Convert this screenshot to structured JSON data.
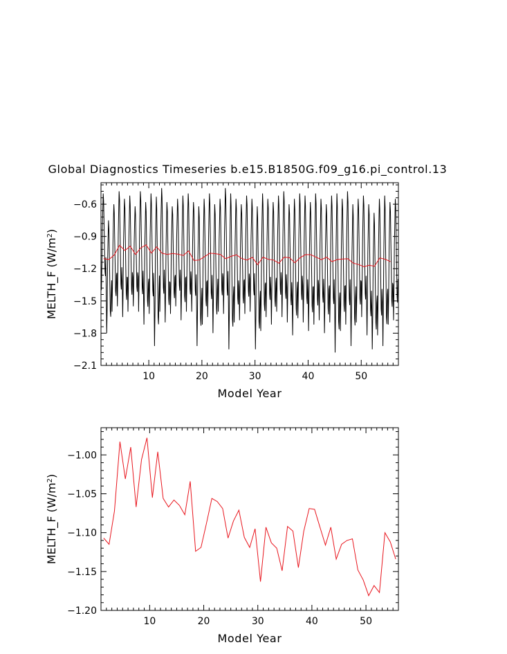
{
  "page_title": "Global Diagnostics Timeseries b.e15.B1850G.f09_g16.pi_control.13",
  "chart_data": [
    {
      "type": "line",
      "xlabel": "Model Year",
      "ylabel_main": "MELTH_F (W/m",
      "ylabel_sup": "2",
      "ylabel_end": ")",
      "xlim": [
        1,
        57
      ],
      "ylim": [
        -2.1,
        -0.4
      ],
      "xticks": [
        10,
        20,
        30,
        40,
        50
      ],
      "yticks": [
        -2.1,
        -1.8,
        -1.5,
        -1.2,
        -0.9,
        -0.6
      ],
      "ytick_labels": [
        "−2.1",
        "−1.8",
        "−1.5",
        "−1.2",
        "−0.9",
        "−0.6"
      ],
      "series": [
        {
          "kind": "monthly",
          "color": "#000000",
          "monthly_pattern": [
            -1.35,
            -1.65,
            -1.4,
            -1.0,
            -0.8,
            -0.62,
            -0.7,
            -0.95,
            -1.2,
            -1.45,
            -1.5,
            -1.3
          ],
          "annual_peaks": [
            -0.5,
            -0.75,
            -0.6,
            -0.48,
            -0.55,
            -0.52,
            -0.62,
            -0.48,
            -0.58,
            -0.5,
            -0.53,
            -0.45,
            -0.58,
            -0.62,
            -0.55,
            -0.52,
            -0.5,
            -0.58,
            -0.62,
            -0.55,
            -0.5,
            -0.6,
            -0.55,
            -0.45,
            -0.5,
            -0.55,
            -0.6,
            -0.52,
            -0.55,
            -0.62,
            -0.5,
            -0.55,
            -0.58,
            -0.52,
            -0.48,
            -0.6,
            -0.55,
            -0.5,
            -0.52,
            -0.58,
            -0.5,
            -0.55,
            -0.6,
            -0.52,
            -0.5,
            -0.55,
            -0.48,
            -0.6,
            -0.55,
            -0.52,
            -0.6,
            -0.68,
            -0.55,
            -0.52,
            -0.58,
            -0.55
          ],
          "annual_troughs": [
            -1.4,
            -1.8,
            -1.6,
            -1.55,
            -1.65,
            -1.6,
            -1.55,
            -1.6,
            -1.72,
            -1.62,
            -1.92,
            -1.6,
            -1.7,
            -1.62,
            -1.55,
            -1.68,
            -1.6,
            -1.6,
            -1.92,
            -1.72,
            -1.65,
            -1.8,
            -1.6,
            -1.62,
            -1.95,
            -1.7,
            -1.68,
            -1.62,
            -1.6,
            -1.95,
            -1.78,
            -1.65,
            -1.72,
            -1.6,
            -1.65,
            -1.7,
            -1.82,
            -1.66,
            -1.7,
            -1.78,
            -1.72,
            -1.68,
            -1.8,
            -1.7,
            -1.98,
            -1.78,
            -1.72,
            -1.92,
            -1.7,
            -1.65,
            -1.82,
            -1.95,
            -1.82,
            -1.92,
            -1.72,
            -1.68
          ]
        },
        {
          "kind": "annual",
          "color": "#e8141c",
          "x": [
            1.5,
            2.5,
            3.5,
            4.5,
            5.5,
            6.5,
            7.5,
            8.5,
            9.5,
            10.5,
            11.5,
            12.5,
            13.5,
            14.5,
            15.5,
            16.5,
            17.5,
            18.5,
            19.5,
            20.5,
            21.5,
            22.5,
            23.5,
            24.5,
            25.5,
            26.5,
            27.5,
            28.5,
            29.5,
            30.5,
            31.5,
            32.5,
            33.5,
            34.5,
            35.5,
            36.5,
            37.5,
            38.5,
            39.5,
            40.5,
            41.5,
            42.5,
            43.5,
            44.5,
            45.5,
            46.5,
            47.5,
            48.5,
            49.5,
            50.5,
            51.5,
            52.5,
            53.5,
            54.5,
            55.5
          ],
          "y": [
            -1.107,
            -1.115,
            -1.072,
            -0.983,
            -1.031,
            -0.99,
            -1.067,
            -1.006,
            -0.978,
            -1.055,
            -0.996,
            -1.056,
            -1.067,
            -1.058,
            -1.065,
            -1.077,
            -1.034,
            -1.124,
            -1.119,
            -1.088,
            -1.056,
            -1.06,
            -1.069,
            -1.107,
            -1.085,
            -1.071,
            -1.106,
            -1.119,
            -1.095,
            -1.163,
            -1.093,
            -1.113,
            -1.12,
            -1.149,
            -1.092,
            -1.098,
            -1.145,
            -1.098,
            -1.069,
            -1.07,
            -1.093,
            -1.116,
            -1.093,
            -1.134,
            -1.115,
            -1.11,
            -1.108,
            -1.148,
            -1.161,
            -1.181,
            -1.168,
            -1.177,
            -1.1,
            -1.112,
            -1.134
          ]
        }
      ]
    },
    {
      "type": "line",
      "xlabel": "Model Year",
      "ylabel_main": "MELTH_F (W/m",
      "ylabel_sup": "2",
      "ylabel_end": ")",
      "xlim": [
        1,
        56
      ],
      "ylim": [
        -1.2,
        -0.965
      ],
      "xticks": [
        10,
        20,
        30,
        40,
        50
      ],
      "yticks": [
        -1.2,
        -1.15,
        -1.1,
        -1.05,
        -1.0
      ],
      "ytick_labels": [
        "−1.20",
        "−1.15",
        "−1.10",
        "−1.05",
        "−1.00"
      ],
      "series": [
        {
          "kind": "annual",
          "color": "#e8141c",
          "x": [
            1.5,
            2.5,
            3.5,
            4.5,
            5.5,
            6.5,
            7.5,
            8.5,
            9.5,
            10.5,
            11.5,
            12.5,
            13.5,
            14.5,
            15.5,
            16.5,
            17.5,
            18.5,
            19.5,
            20.5,
            21.5,
            22.5,
            23.5,
            24.5,
            25.5,
            26.5,
            27.5,
            28.5,
            29.5,
            30.5,
            31.5,
            32.5,
            33.5,
            34.5,
            35.5,
            36.5,
            37.5,
            38.5,
            39.5,
            40.5,
            41.5,
            42.5,
            43.5,
            44.5,
            45.5,
            46.5,
            47.5,
            48.5,
            49.5,
            50.5,
            51.5,
            52.5,
            53.5,
            54.5,
            55.5
          ],
          "y": [
            -1.107,
            -1.115,
            -1.072,
            -0.983,
            -1.031,
            -0.99,
            -1.067,
            -1.006,
            -0.978,
            -1.055,
            -0.996,
            -1.056,
            -1.067,
            -1.058,
            -1.065,
            -1.077,
            -1.034,
            -1.124,
            -1.119,
            -1.088,
            -1.056,
            -1.06,
            -1.069,
            -1.107,
            -1.085,
            -1.071,
            -1.106,
            -1.119,
            -1.095,
            -1.163,
            -1.093,
            -1.113,
            -1.12,
            -1.149,
            -1.092,
            -1.098,
            -1.145,
            -1.098,
            -1.069,
            -1.07,
            -1.093,
            -1.116,
            -1.093,
            -1.134,
            -1.115,
            -1.11,
            -1.108,
            -1.148,
            -1.161,
            -1.181,
            -1.168,
            -1.177,
            -1.1,
            -1.112,
            -1.134
          ]
        }
      ]
    }
  ]
}
